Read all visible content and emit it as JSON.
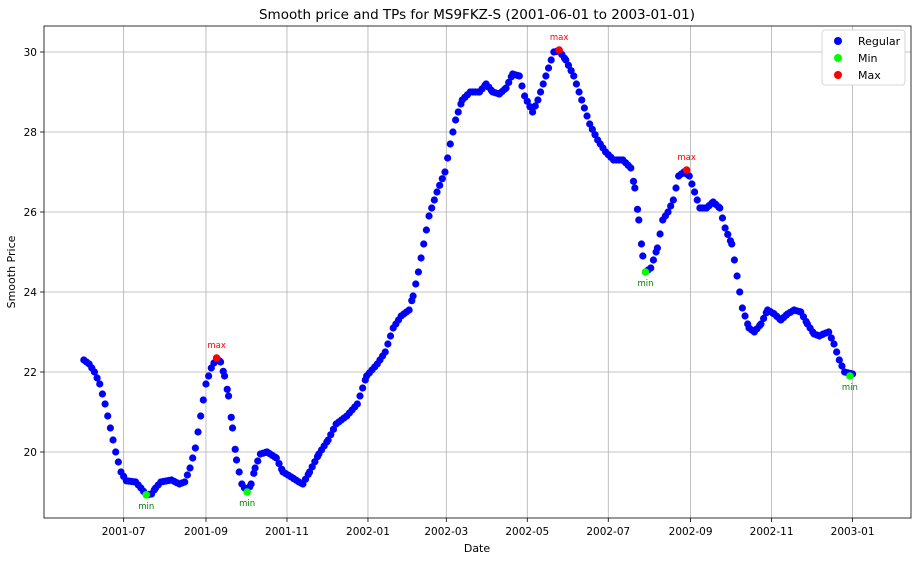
{
  "chart_data": {
    "type": "scatter",
    "title": "Smooth price and TPs for MS9FKZ-S (2001-06-01 to 2003-01-01)",
    "xlabel": "Date",
    "ylabel": "Smooth Price",
    "xlim": [
      "2001-05-02",
      "2003-02-14"
    ],
    "ylim": [
      18.35,
      30.65
    ],
    "grid": true,
    "legend_position": "top-right",
    "x_ticks": [
      {
        "date": "2001-07-01",
        "label": "2001-07"
      },
      {
        "date": "2001-09-01",
        "label": "2001-09"
      },
      {
        "date": "2001-11-01",
        "label": "2001-11"
      },
      {
        "date": "2002-01-01",
        "label": "2002-01"
      },
      {
        "date": "2002-03-01",
        "label": "2002-03"
      },
      {
        "date": "2002-05-01",
        "label": "2002-05"
      },
      {
        "date": "2002-07-01",
        "label": "2002-07"
      },
      {
        "date": "2002-09-01",
        "label": "2002-09"
      },
      {
        "date": "2002-11-01",
        "label": "2002-11"
      },
      {
        "date": "2003-01-01",
        "label": "2003-01"
      }
    ],
    "y_ticks": [
      20,
      22,
      24,
      26,
      28,
      30
    ],
    "series": [
      {
        "name": "Regular",
        "color": "#0000ff",
        "keypoints": [
          [
            "2001-06-01",
            22.3
          ],
          [
            "2001-06-05",
            22.2
          ],
          [
            "2001-06-09",
            22.0
          ],
          [
            "2001-06-13",
            21.7
          ],
          [
            "2001-06-17",
            21.2
          ],
          [
            "2001-06-21",
            20.6
          ],
          [
            "2001-06-25",
            20.0
          ],
          [
            "2001-06-29",
            19.5
          ],
          [
            "2001-07-03",
            19.28
          ],
          [
            "2001-07-10",
            19.25
          ],
          [
            "2001-07-14",
            19.1
          ],
          [
            "2001-07-18",
            18.93
          ],
          [
            "2001-07-22",
            18.95
          ],
          [
            "2001-07-25",
            19.1
          ],
          [
            "2001-07-29",
            19.25
          ],
          [
            "2001-08-06",
            19.3
          ],
          [
            "2001-08-12",
            19.2
          ],
          [
            "2001-08-16",
            19.25
          ],
          [
            "2001-08-20",
            19.6
          ],
          [
            "2001-08-24",
            20.1
          ],
          [
            "2001-08-28",
            20.9
          ],
          [
            "2001-09-01",
            21.7
          ],
          [
            "2001-09-05",
            22.1
          ],
          [
            "2001-09-09",
            22.35
          ],
          [
            "2001-09-12",
            22.25
          ],
          [
            "2001-09-15",
            21.9
          ],
          [
            "2001-09-18",
            21.4
          ],
          [
            "2001-09-21",
            20.6
          ],
          [
            "2001-09-24",
            19.8
          ],
          [
            "2001-09-28",
            19.2
          ],
          [
            "2001-10-02",
            19.0
          ],
          [
            "2001-10-05",
            19.2
          ],
          [
            "2001-10-08",
            19.6
          ],
          [
            "2001-10-12",
            19.95
          ],
          [
            "2001-10-17",
            20.0
          ],
          [
            "2001-10-24",
            19.85
          ],
          [
            "2001-10-29",
            19.5
          ],
          [
            "2001-11-04",
            19.38
          ],
          [
            "2001-11-10",
            19.25
          ],
          [
            "2001-11-13",
            19.2
          ],
          [
            "2001-11-18",
            19.5
          ],
          [
            "2001-11-25",
            19.95
          ],
          [
            "2001-12-02",
            20.3
          ],
          [
            "2001-12-08",
            20.7
          ],
          [
            "2001-12-16",
            20.9
          ],
          [
            "2001-12-24",
            21.2
          ],
          [
            "2001-12-31",
            21.9
          ],
          [
            "2002-01-08",
            22.2
          ],
          [
            "2002-01-14",
            22.5
          ],
          [
            "2002-01-20",
            23.1
          ],
          [
            "2002-01-26",
            23.4
          ],
          [
            "2002-02-01",
            23.55
          ],
          [
            "2002-02-04",
            23.9
          ],
          [
            "2002-02-08",
            24.5
          ],
          [
            "2002-02-12",
            25.2
          ],
          [
            "2002-02-16",
            25.9
          ],
          [
            "2002-02-22",
            26.5
          ],
          [
            "2002-02-28",
            27.0
          ],
          [
            "2002-03-04",
            27.7
          ],
          [
            "2002-03-08",
            28.3
          ],
          [
            "2002-03-13",
            28.8
          ],
          [
            "2002-03-19",
            29.0
          ],
          [
            "2002-03-26",
            29.0
          ],
          [
            "2002-03-31",
            29.2
          ],
          [
            "2002-04-05",
            29.0
          ],
          [
            "2002-04-10",
            28.95
          ],
          [
            "2002-04-15",
            29.1
          ],
          [
            "2002-04-20",
            29.45
          ],
          [
            "2002-04-25",
            29.4
          ],
          [
            "2002-04-29",
            28.9
          ],
          [
            "2002-05-05",
            28.5
          ],
          [
            "2002-05-09",
            28.8
          ],
          [
            "2002-05-13",
            29.2
          ],
          [
            "2002-05-17",
            29.6
          ],
          [
            "2002-05-21",
            30.0
          ],
          [
            "2002-05-25",
            30.03
          ],
          [
            "2002-05-30",
            29.8
          ],
          [
            "2002-06-05",
            29.4
          ],
          [
            "2002-06-11",
            28.8
          ],
          [
            "2002-06-17",
            28.2
          ],
          [
            "2002-06-23",
            27.8
          ],
          [
            "2002-06-29",
            27.5
          ],
          [
            "2002-07-05",
            27.3
          ],
          [
            "2002-07-12",
            27.3
          ],
          [
            "2002-07-18",
            27.1
          ],
          [
            "2002-07-21",
            26.6
          ],
          [
            "2002-07-24",
            25.8
          ],
          [
            "2002-07-27",
            24.9
          ],
          [
            "2002-07-29",
            24.5
          ],
          [
            "2002-08-02",
            24.6
          ],
          [
            "2002-08-07",
            25.1
          ],
          [
            "2002-08-11",
            25.8
          ],
          [
            "2002-08-15",
            26.0
          ],
          [
            "2002-08-19",
            26.3
          ],
          [
            "2002-08-23",
            26.9
          ],
          [
            "2002-08-27",
            27.0
          ],
          [
            "2002-08-31",
            26.9
          ],
          [
            "2002-09-04",
            26.5
          ],
          [
            "2002-09-08",
            26.1
          ],
          [
            "2002-09-13",
            26.1
          ],
          [
            "2002-09-18",
            26.25
          ],
          [
            "2002-09-23",
            26.1
          ],
          [
            "2002-09-27",
            25.6
          ],
          [
            "2002-10-02",
            25.2
          ],
          [
            "2002-10-06",
            24.4
          ],
          [
            "2002-10-10",
            23.6
          ],
          [
            "2002-10-15",
            23.1
          ],
          [
            "2002-10-19",
            23.0
          ],
          [
            "2002-10-24",
            23.2
          ],
          [
            "2002-10-29",
            23.55
          ],
          [
            "2002-11-03",
            23.45
          ],
          [
            "2002-11-08",
            23.3
          ],
          [
            "2002-11-13",
            23.45
          ],
          [
            "2002-11-18",
            23.55
          ],
          [
            "2002-11-23",
            23.5
          ],
          [
            "2002-11-28",
            23.2
          ],
          [
            "2002-12-03",
            22.95
          ],
          [
            "2002-12-07",
            22.9
          ],
          [
            "2002-12-10",
            22.95
          ],
          [
            "2002-12-14",
            23.0
          ],
          [
            "2002-12-18",
            22.7
          ],
          [
            "2002-12-22",
            22.3
          ],
          [
            "2002-12-26",
            22.0
          ],
          [
            "2003-01-01",
            21.95
          ]
        ]
      },
      {
        "name": "Min",
        "color": "#00ff00",
        "points": [
          [
            "2001-07-18",
            18.93
          ],
          [
            "2001-10-02",
            19.0
          ],
          [
            "2002-07-29",
            24.5
          ],
          [
            "2002-12-30",
            21.9
          ]
        ]
      },
      {
        "name": "Max",
        "color": "#ff0000",
        "points": [
          [
            "2001-09-09",
            22.35
          ],
          [
            "2002-05-25",
            30.05
          ],
          [
            "2002-08-29",
            27.05
          ]
        ]
      }
    ],
    "annotations": {
      "min_label": "min",
      "max_label": "max",
      "min_color": "#008000",
      "max_color": "#ff0000"
    }
  }
}
